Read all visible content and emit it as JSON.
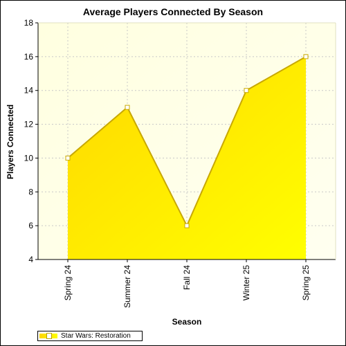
{
  "chart_data": {
    "type": "area",
    "title": "Average Players Connected By Season",
    "xlabel": "Season",
    "ylabel": "Players Connected",
    "categories": [
      "Spring 24",
      "Summer 24",
      "Fall 24",
      "Winter 25",
      "Spring 25"
    ],
    "series": [
      {
        "name": "Star Wars: Restoration",
        "values": [
          10,
          13,
          6,
          14,
          16
        ]
      }
    ],
    "ylim": [
      4,
      18
    ],
    "yticks": [
      4,
      6,
      8,
      10,
      12,
      14,
      16,
      18
    ],
    "grid": true,
    "legend_position": "bottom-left",
    "colors": {
      "plot_background_start": "#ffffe0",
      "plot_background_end": "#fffff0",
      "area_start": "#ffd700",
      "area_end": "#ffff00",
      "line": "#c8a800",
      "marker_fill": "#ffffff",
      "grid": "#c8c8c8"
    }
  }
}
